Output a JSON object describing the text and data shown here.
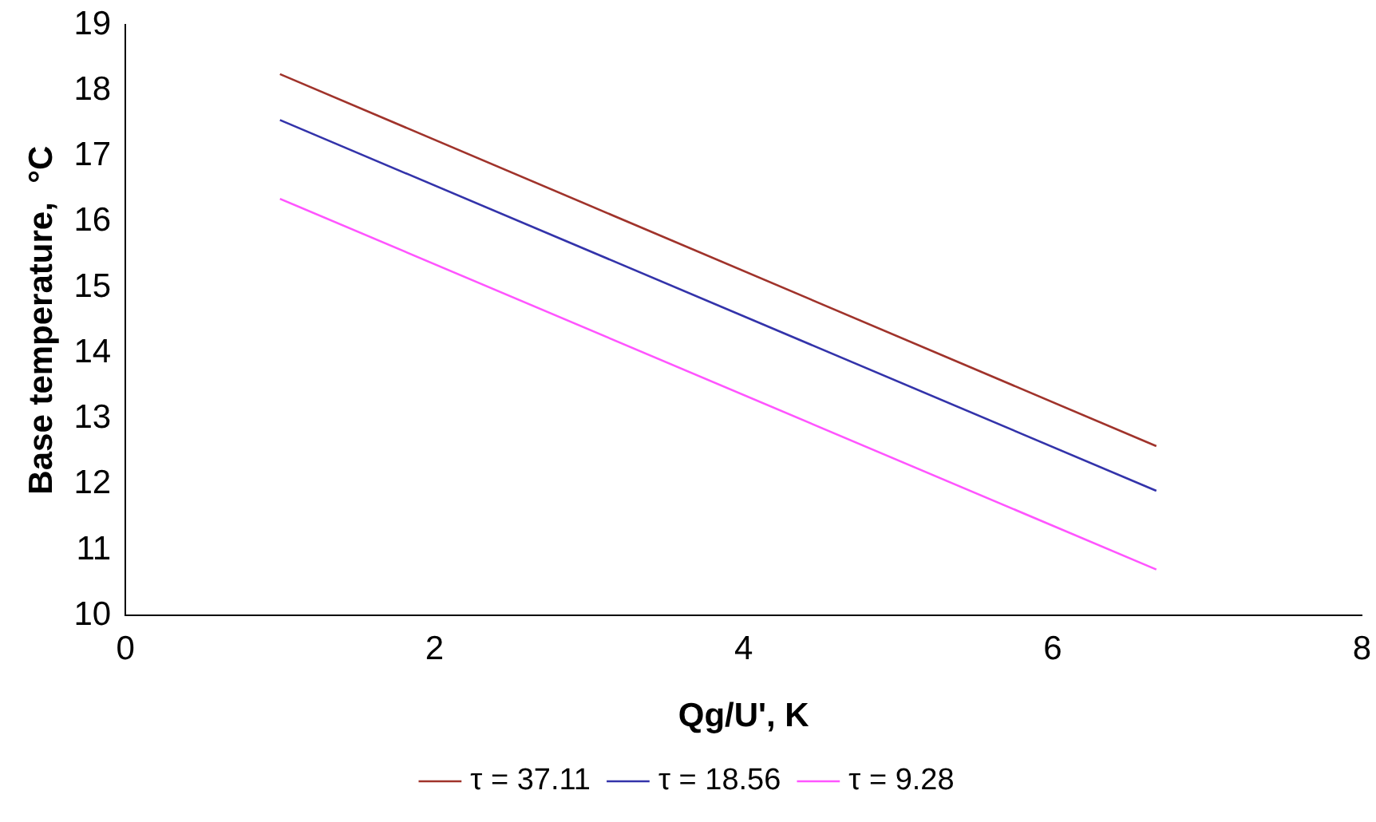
{
  "chart_data": {
    "type": "line",
    "xlabel": "Qg/U', K",
    "ylabel": "Base temperature,  °C",
    "x": [
      1,
      6.67
    ],
    "series": [
      {
        "name": "τ = 37.11",
        "color": "#a0332b",
        "values": [
          18.25,
          12.58
        ]
      },
      {
        "name": "τ = 18.56",
        "color": "#3333aa",
        "values": [
          17.55,
          11.9
        ]
      },
      {
        "name": "τ = 9.28",
        "color": "#ff55ff",
        "values": [
          16.35,
          10.7
        ]
      }
    ],
    "xlim": [
      0,
      8
    ],
    "xticks": [
      0,
      2,
      4,
      6,
      8
    ],
    "ylim": [
      10,
      19
    ],
    "yticks": [
      10,
      11,
      12,
      13,
      14,
      15,
      16,
      17,
      18,
      19
    ],
    "grid": false,
    "legend": "bottom",
    "marker": "none",
    "line_style": "solid"
  }
}
